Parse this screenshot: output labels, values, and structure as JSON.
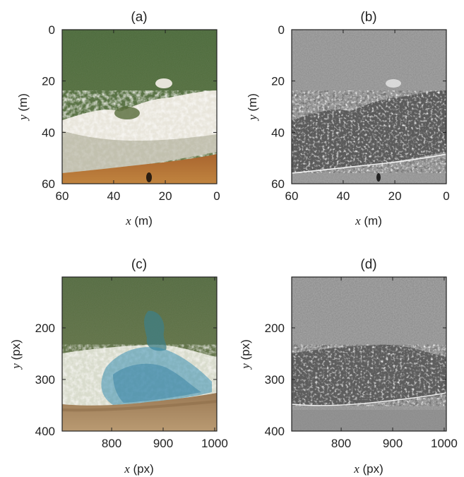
{
  "panels": [
    {
      "id": "a",
      "title": "(a)",
      "kind": "photo",
      "x_ticks": [
        "60",
        "40",
        "20",
        "0"
      ],
      "y_ticks": [
        "0",
        "20",
        "40",
        "60"
      ],
      "xlabel_var": "x",
      "xlabel_unit": " (m)",
      "ylabel_var": "y",
      "ylabel_unit": " (m)"
    },
    {
      "id": "b",
      "title": "(b)",
      "kind": "gray",
      "x_ticks": [
        "60",
        "40",
        "20",
        "0"
      ],
      "y_ticks": [
        "0",
        "20",
        "40",
        "60"
      ],
      "xlabel_var": "x",
      "xlabel_unit": " (m)",
      "ylabel_var": "y",
      "ylabel_unit": " (m)"
    },
    {
      "id": "c",
      "title": "(c)",
      "kind": "photo-dye",
      "x_ticks": [
        "800",
        "900",
        "1000"
      ],
      "y_ticks": [
        "200",
        "300",
        "400"
      ],
      "xlabel_var": "x",
      "xlabel_unit": " (px)",
      "ylabel_var": "y",
      "ylabel_unit": " (px)"
    },
    {
      "id": "d",
      "title": "(d)",
      "kind": "gray",
      "x_ticks": [
        "800",
        "900",
        "1000"
      ],
      "y_ticks": [
        "200",
        "300",
        "400"
      ],
      "xlabel_var": "x",
      "xlabel_unit": " (px)",
      "ylabel_var": "y",
      "ylabel_unit": " (px)"
    }
  ],
  "colors": {
    "water": "#4f6b3c",
    "water_dark": "#3e5a30",
    "foam": "#f2efe8",
    "sand": "#b0703a",
    "dye": "#2f86a6",
    "gray_bg": "#8e8e8e",
    "axis": "#222222"
  }
}
